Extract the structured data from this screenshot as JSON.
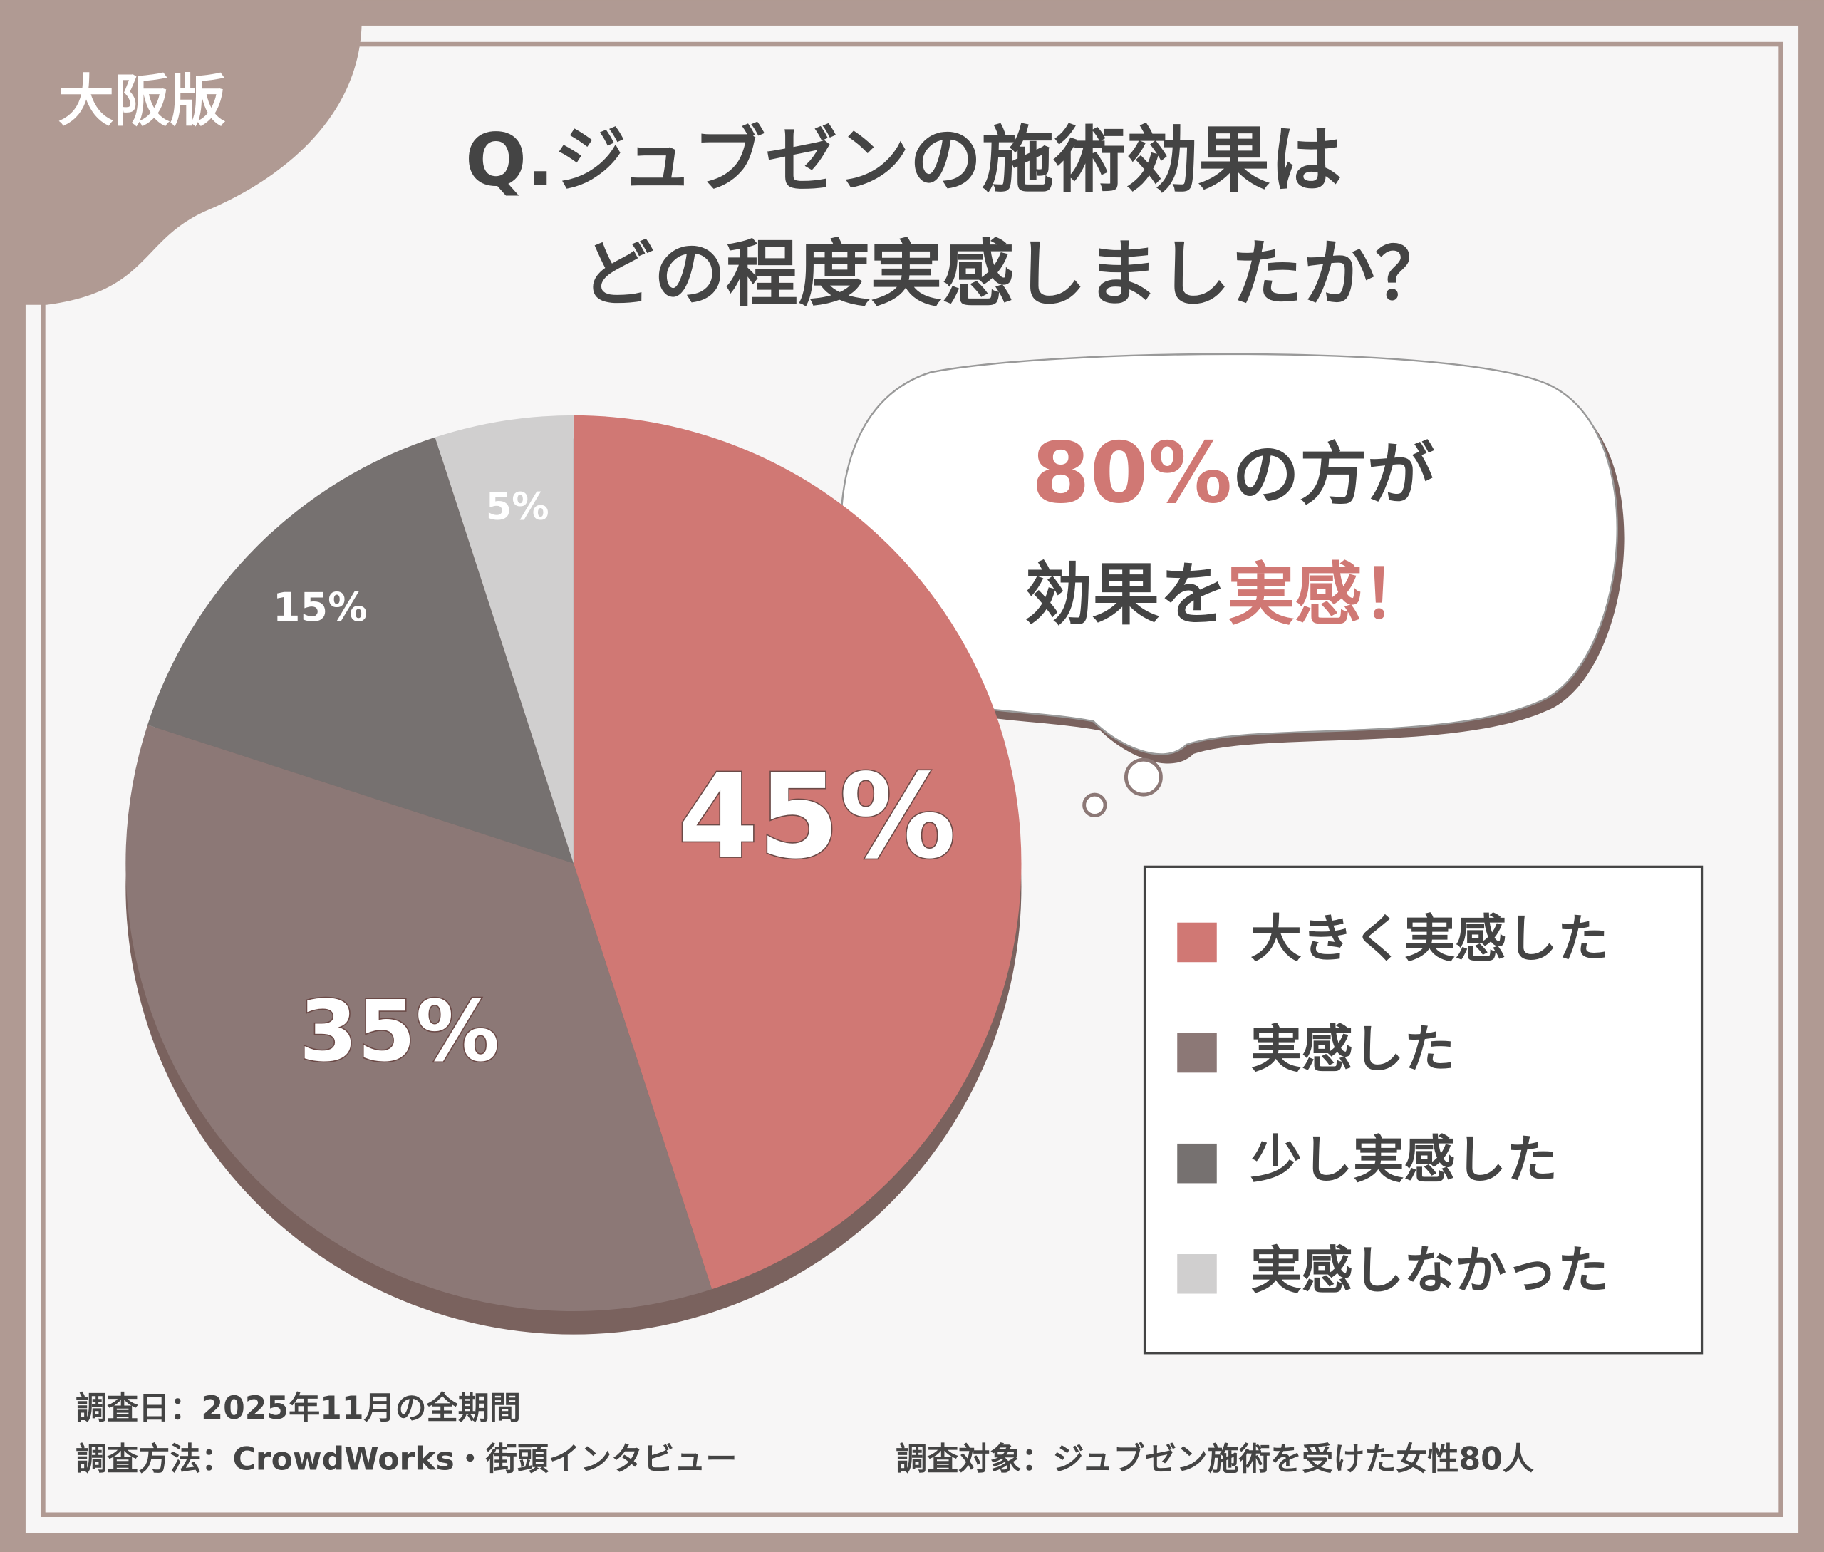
{
  "badge": "大阪版",
  "chart_data": {
    "type": "pie",
    "title": [
      "Q.ジュブゼンの施術効果は",
      "どの程度実感しましたか？"
    ],
    "categories": [
      "大きく実感した",
      "実感した",
      "少し実感した",
      "実感しなかった"
    ],
    "values": [
      45,
      35,
      15,
      5
    ],
    "value_labels": [
      "45%",
      "35%",
      "15%",
      "5%"
    ],
    "colors": [
      "#d07874",
      "#8c7876",
      "#767170",
      "#d0cfcf"
    ],
    "legend": "right"
  },
  "callout": {
    "line1": [
      "80%",
      "の方が"
    ],
    "line2": [
      "効果を",
      "実感",
      "！"
    ]
  },
  "notes": [
    "調査日：2025年11月の全期間",
    "調査方法：CrowdWorks・街頭インタビュー",
    "調査対象：ジュブゼン施術を受けた女性80人"
  ]
}
